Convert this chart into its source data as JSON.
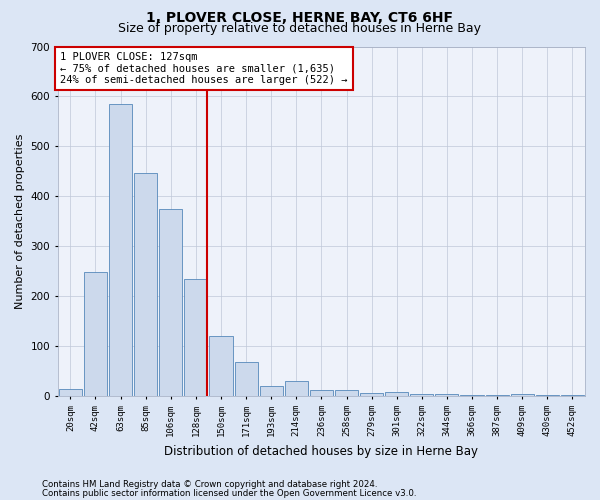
{
  "title": "1, PLOVER CLOSE, HERNE BAY, CT6 6HF",
  "subtitle": "Size of property relative to detached houses in Herne Bay",
  "xlabel": "Distribution of detached houses by size in Herne Bay",
  "ylabel": "Number of detached properties",
  "categories": [
    "20sqm",
    "42sqm",
    "63sqm",
    "85sqm",
    "106sqm",
    "128sqm",
    "150sqm",
    "171sqm",
    "193sqm",
    "214sqm",
    "236sqm",
    "258sqm",
    "279sqm",
    "301sqm",
    "322sqm",
    "344sqm",
    "366sqm",
    "387sqm",
    "409sqm",
    "430sqm",
    "452sqm"
  ],
  "values": [
    15,
    248,
    585,
    447,
    375,
    235,
    120,
    68,
    20,
    30,
    12,
    12,
    6,
    9,
    5,
    5,
    3,
    3,
    5,
    3,
    3
  ],
  "bar_color": "#ccd9ec",
  "bar_edge_color": "#5588bb",
  "highlight_index": 5,
  "highlight_line_color": "#cc0000",
  "annotation_text": "1 PLOVER CLOSE: 127sqm\n← 75% of detached houses are smaller (1,635)\n24% of semi-detached houses are larger (522) →",
  "annotation_box_color": "#ffffff",
  "annotation_box_edge": "#cc0000",
  "ylim": [
    0,
    700
  ],
  "yticks": [
    0,
    100,
    200,
    300,
    400,
    500,
    600,
    700
  ],
  "footer_line1": "Contains HM Land Registry data © Crown copyright and database right 2024.",
  "footer_line2": "Contains public sector information licensed under the Open Government Licence v3.0.",
  "background_color": "#dce6f5",
  "plot_background": "#eef2fa",
  "grid_color": "#c0c8d8",
  "title_fontsize": 10,
  "subtitle_fontsize": 9,
  "annotation_fontsize": 7.5,
  "ylabel_fontsize": 8,
  "xlabel_fontsize": 8.5
}
